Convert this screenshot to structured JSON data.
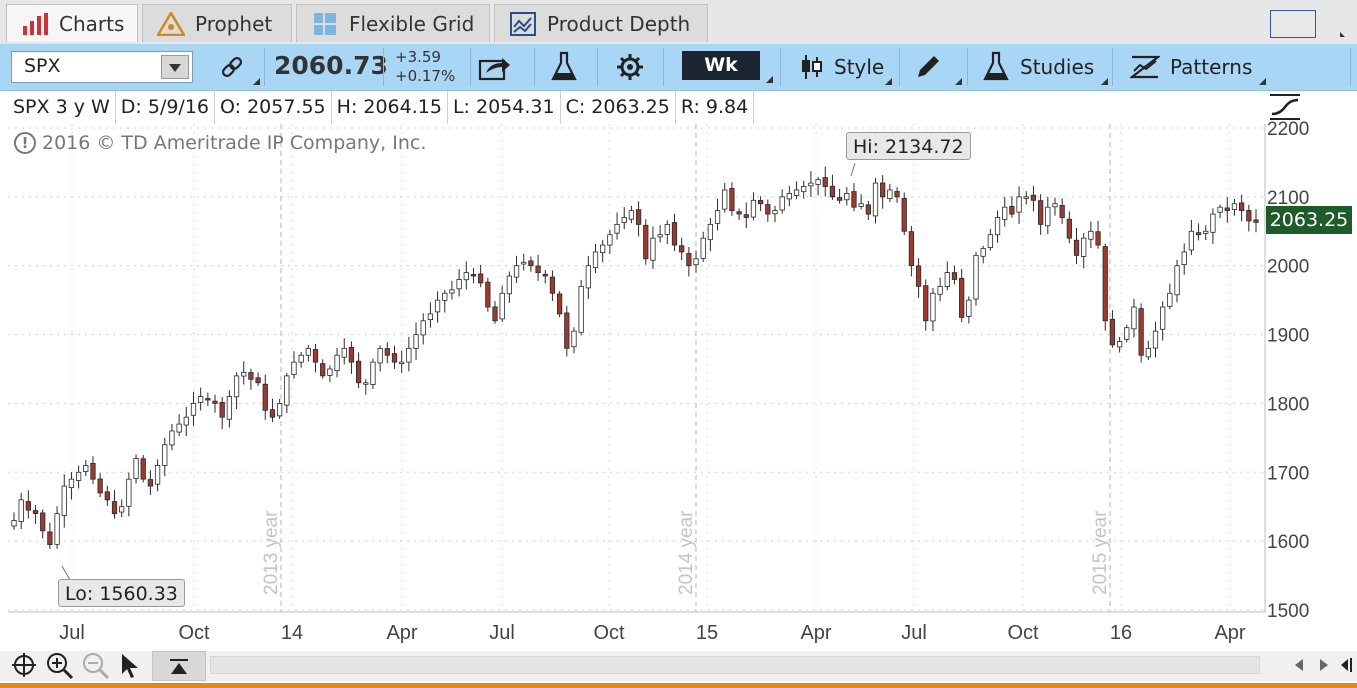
{
  "tabs": [
    {
      "label": "Charts",
      "icon": "bar-chart-icon",
      "active": true
    },
    {
      "label": "Prophet",
      "icon": "prophet-icon",
      "active": false
    },
    {
      "label": "Flexible Grid",
      "icon": "grid-icon",
      "active": false
    },
    {
      "label": "Product Depth",
      "icon": "depth-icon",
      "active": false
    }
  ],
  "toolbar": {
    "symbol": "SPX",
    "price": "2060.73",
    "change": "+3.59",
    "change_pct": "+0.17%",
    "timeframe": "Wk",
    "style_label": "Style",
    "studies_label": "Studies",
    "patterns_label": "Patterns"
  },
  "infobar": {
    "desc": "SPX 3 y W",
    "date": "D: 5/9/16",
    "open": "O: 2057.55",
    "high": "H: 2064.15",
    "low": "L: 2054.31",
    "close": "C: 2063.25",
    "range": "R: 9.84"
  },
  "copyright": "2016 © TD Ameritrade IP Company, Inc.",
  "callouts": {
    "hi": "Hi: 2134.72",
    "lo": "Lo: 1560.33"
  },
  "last_price": "2063.25",
  "colors": {
    "up": "#ffffff",
    "down": "#9c3a32",
    "outline": "#2a2a2a",
    "accent_blue": "#a9d6f5",
    "last_price_bg": "#1f5a2a"
  },
  "chart_data": {
    "type": "candlestick",
    "ylim": [
      1500,
      2200
    ],
    "yticks": [
      1500,
      1600,
      1700,
      1800,
      1900,
      2000,
      2100,
      2200
    ],
    "xtick_labels": [
      "Jul",
      "Oct",
      "14",
      "Apr",
      "Jul",
      "Oct",
      "15",
      "Apr",
      "Jul",
      "Oct",
      "16",
      "Apr"
    ],
    "year_labels": [
      "2013 year",
      "2014 year",
      "2015 year"
    ],
    "closes": [
      1630,
      1660,
      1645,
      1640,
      1615,
      1595,
      1640,
      1680,
      1690,
      1700,
      1710,
      1690,
      1670,
      1660,
      1640,
      1650,
      1690,
      1720,
      1690,
      1680,
      1710,
      1740,
      1760,
      1770,
      1780,
      1800,
      1810,
      1805,
      1800,
      1780,
      1810,
      1840,
      1845,
      1835,
      1830,
      1790,
      1780,
      1800,
      1840,
      1860,
      1870,
      1880,
      1860,
      1840,
      1850,
      1870,
      1880,
      1860,
      1830,
      1830,
      1860,
      1880,
      1870,
      1860,
      1860,
      1880,
      1900,
      1920,
      1930,
      1950,
      1960,
      1965,
      1980,
      1990,
      1985,
      1975,
      1940,
      1920,
      1960,
      1985,
      2000,
      2005,
      2000,
      1990,
      1985,
      1960,
      1930,
      1880,
      1905,
      1970,
      2000,
      2020,
      2030,
      2045,
      2060,
      2070,
      2080,
      2060,
      2010,
      2040,
      2045,
      2060,
      2030,
      2020,
      2000,
      2010,
      2040,
      2060,
      2080,
      2110,
      2080,
      2075,
      2070,
      2095,
      2090,
      2075,
      2080,
      2100,
      2105,
      2110,
      2115,
      2120,
      2125,
      2115,
      2100,
      2095,
      2105,
      2085,
      2090,
      2075,
      2120,
      2100,
      2110,
      2100,
      2050,
      2000,
      1970,
      1920,
      1960,
      1970,
      1990,
      1980,
      1925,
      1950,
      2015,
      2025,
      2045,
      2070,
      2085,
      2075,
      2100,
      2100,
      2095,
      2060,
      2085,
      2090,
      2070,
      2040,
      2015,
      2040,
      2050,
      2030,
      1920,
      1885,
      1890,
      1910,
      1940,
      1870,
      1880,
      1905,
      1940,
      1960,
      2000,
      2020,
      2050,
      2045,
      2050,
      2075,
      2085,
      2080,
      2090,
      2080,
      2065,
      2063
    ]
  }
}
